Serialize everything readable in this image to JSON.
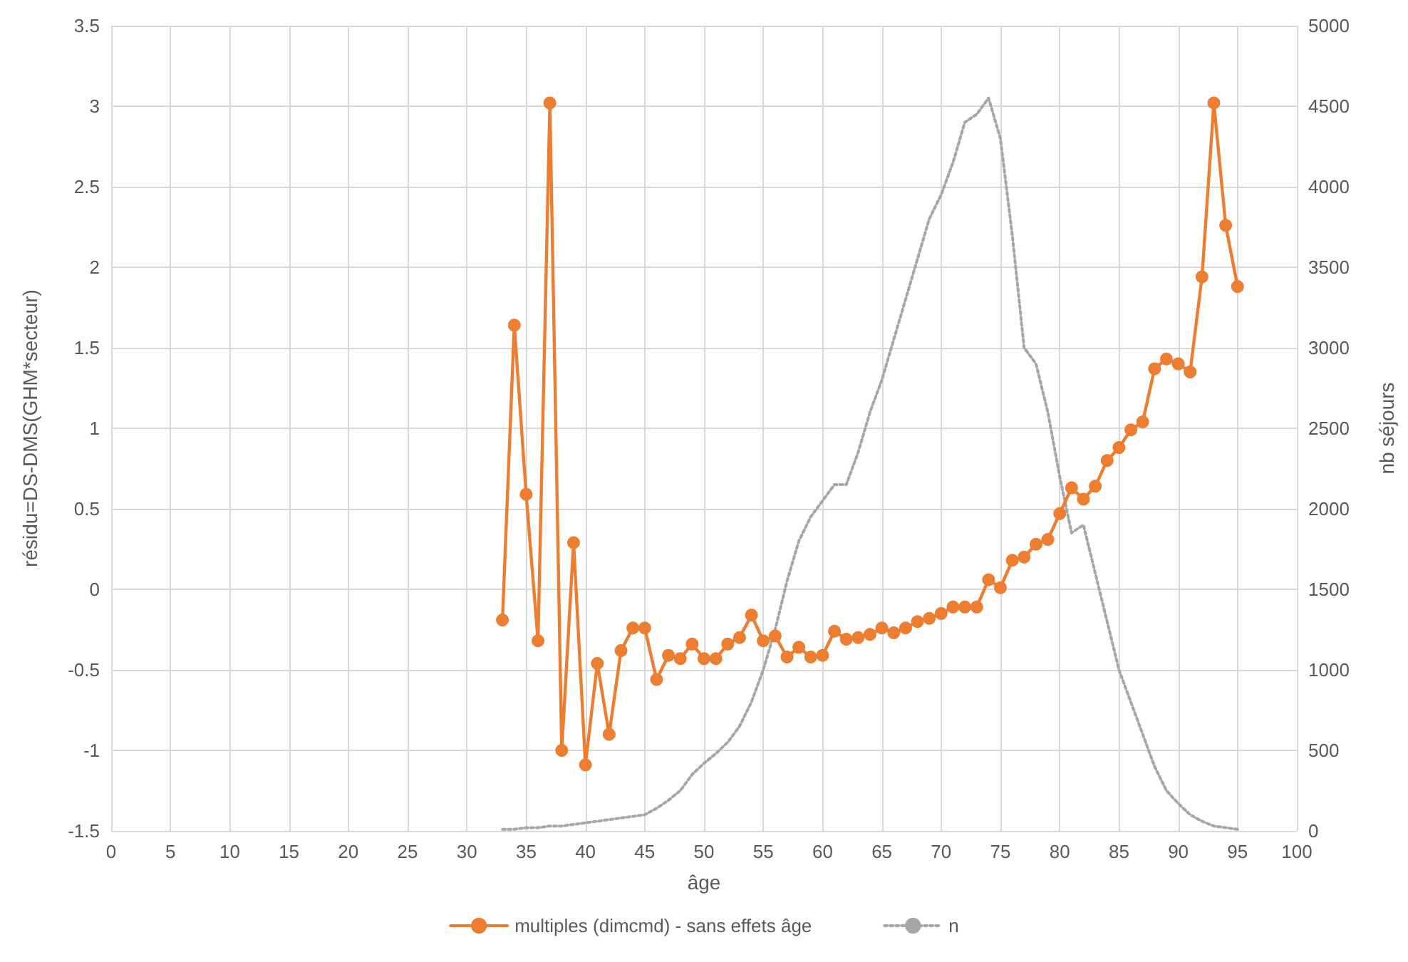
{
  "chart_data": {
    "type": "line",
    "xlabel": "âge",
    "ylabel": "résidu=DS-DMS(GHM*secteur)",
    "y2label": "nb séjours",
    "x": [
      33,
      34,
      35,
      36,
      37,
      38,
      39,
      40,
      41,
      42,
      43,
      44,
      45,
      46,
      47,
      48,
      49,
      50,
      51,
      52,
      53,
      54,
      55,
      56,
      57,
      58,
      59,
      60,
      61,
      62,
      63,
      64,
      65,
      66,
      67,
      68,
      69,
      70,
      71,
      72,
      73,
      74,
      75,
      76,
      77,
      78,
      79,
      80,
      81,
      82,
      83,
      84,
      85,
      86,
      87,
      88,
      89,
      90,
      91,
      92,
      93,
      94,
      95
    ],
    "series": [
      {
        "name": "multiples (dimcmd) - sans effets âge",
        "color": "#ed7d31",
        "marker": "circle",
        "line_style": "solid",
        "values": [
          -0.19,
          1.64,
          0.59,
          -0.32,
          3.02,
          -1.0,
          0.29,
          -1.09,
          -0.46,
          -0.9,
          -0.38,
          -0.24,
          -0.24,
          -0.56,
          -0.41,
          -0.43,
          -0.34,
          -0.43,
          -0.43,
          -0.34,
          -0.3,
          -0.16,
          -0.32,
          -0.29,
          -0.42,
          -0.36,
          -0.42,
          -0.41,
          -0.26,
          -0.31,
          -0.3,
          -0.28,
          -0.24,
          -0.27,
          -0.24,
          -0.2,
          -0.18,
          -0.15,
          -0.11,
          -0.11,
          -0.11,
          0.06,
          0.01,
          0.18,
          0.2,
          0.28,
          0.31,
          0.47,
          0.63,
          0.56,
          0.64,
          0.8,
          0.88,
          0.99,
          1.04,
          1.37,
          1.43,
          1.4,
          1.35,
          1.94,
          3.02,
          2.26,
          1.88
        ]
      },
      {
        "name": "n",
        "color": "#a6a6a6",
        "marker": "none",
        "line_style": "dotted",
        "axis": "y2",
        "values": [
          10,
          10,
          20,
          20,
          30,
          30,
          40,
          50,
          60,
          70,
          80,
          90,
          100,
          140,
          190,
          250,
          350,
          420,
          480,
          550,
          650,
          800,
          1000,
          1250,
          1550,
          1800,
          1950,
          2050,
          2150,
          2150,
          2350,
          2600,
          2800,
          3050,
          3300,
          3550,
          3800,
          3950,
          4150,
          4400,
          4450,
          4550,
          4300,
          3700,
          3000,
          2900,
          2600,
          2200,
          1850,
          1900,
          1600,
          1300,
          1000,
          800,
          600,
          400,
          250,
          170,
          100,
          60,
          30,
          20,
          10
        ]
      }
    ],
    "xlim": [
      0,
      100
    ],
    "xticks": [
      0,
      5,
      10,
      15,
      20,
      25,
      30,
      35,
      40,
      45,
      50,
      55,
      60,
      65,
      70,
      75,
      80,
      85,
      90,
      95,
      100
    ],
    "ylim": [
      -1.5,
      3.5
    ],
    "yticks": [
      -1.5,
      -1,
      -0.5,
      0,
      0.5,
      1,
      1.5,
      2,
      2.5,
      3,
      3.5
    ],
    "y2lim": [
      0,
      5000
    ],
    "y2ticks": [
      0,
      500,
      1000,
      1500,
      2000,
      2500,
      3000,
      3500,
      4000,
      4500,
      5000
    ],
    "grid": true,
    "legend": "bottom"
  }
}
